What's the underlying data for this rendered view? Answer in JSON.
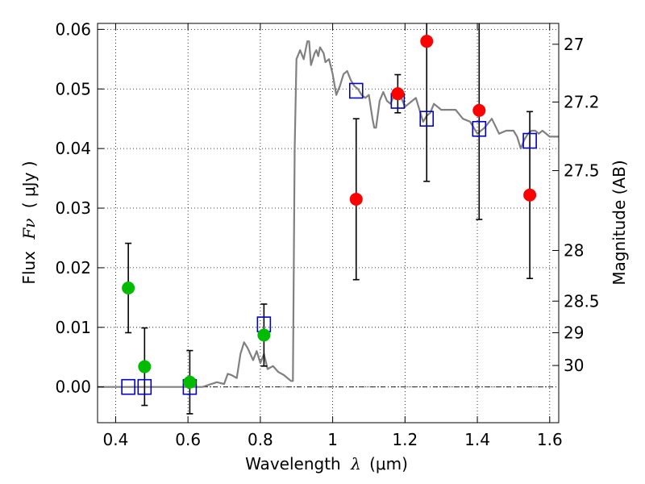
{
  "chart_data": {
    "type": "scatter",
    "xlabel": "Wavelength",
    "xlabel_symbol": "λ",
    "xlabel_unit": "(μm)",
    "ylabel": "Flux",
    "ylabel_symbol": "Fν",
    "ylabel_unit": "( μJy )",
    "ylabel_right": "Magnitude (AB)",
    "xlim": [
      0.35,
      1.625
    ],
    "ylim": [
      -0.006,
      0.061
    ],
    "grid": true,
    "x_ticks": [
      {
        "value": 0.4,
        "label": "0.4"
      },
      {
        "value": 0.6,
        "label": "0.6"
      },
      {
        "value": 0.8,
        "label": "0.8"
      },
      {
        "value": 1.0,
        "label": "1"
      },
      {
        "value": 1.2,
        "label": "1.2"
      },
      {
        "value": 1.4,
        "label": "1.4"
      },
      {
        "value": 1.6,
        "label": "1.6"
      }
    ],
    "y_ticks": [
      {
        "value": 0.0,
        "label": "0.00"
      },
      {
        "value": 0.01,
        "label": "0.01"
      },
      {
        "value": 0.02,
        "label": "0.02"
      },
      {
        "value": 0.03,
        "label": "0.03"
      },
      {
        "value": 0.04,
        "label": "0.04"
      },
      {
        "value": 0.05,
        "label": "0.05"
      },
      {
        "value": 0.06,
        "label": "0.06"
      }
    ],
    "right_ticks": [
      {
        "label": "27",
        "flux": 0.0575
      },
      {
        "label": "27.2",
        "flux": 0.0478
      },
      {
        "label": "27.5",
        "flux": 0.0363
      },
      {
        "label": "28",
        "flux": 0.0229
      },
      {
        "label": "28.5",
        "flux": 0.0144
      },
      {
        "label": "29",
        "flux": 0.0091
      },
      {
        "label": "30",
        "flux": 0.0036
      }
    ],
    "series": [
      {
        "name": "model spectrum",
        "kind": "line",
        "color": "#808080",
        "x": [
          0.35,
          0.64,
          0.66,
          0.68,
          0.7,
          0.71,
          0.72,
          0.735,
          0.745,
          0.755,
          0.765,
          0.78,
          0.79,
          0.8,
          0.81,
          0.82,
          0.835,
          0.85,
          0.865,
          0.875,
          0.885,
          0.89,
          0.895,
          0.9,
          0.91,
          0.92,
          0.93,
          0.935,
          0.94,
          0.95,
          0.955,
          0.96,
          0.965,
          0.975,
          0.98,
          0.99,
          1.0,
          1.01,
          1.02,
          1.03,
          1.04,
          1.05,
          1.06,
          1.07,
          1.08,
          1.09,
          1.1,
          1.11,
          1.115,
          1.12,
          1.13,
          1.14,
          1.15,
          1.16,
          1.17,
          1.18,
          1.19,
          1.2,
          1.21,
          1.22,
          1.23,
          1.24,
          1.25,
          1.26,
          1.27,
          1.28,
          1.29,
          1.3,
          1.32,
          1.34,
          1.36,
          1.38,
          1.4,
          1.42,
          1.44,
          1.46,
          1.48,
          1.5,
          1.51,
          1.52,
          1.53,
          1.54,
          1.55,
          1.56,
          1.57,
          1.58,
          1.6,
          1.625
        ],
        "y": [
          0.0,
          0.0,
          0.0004,
          0.0008,
          0.0005,
          0.0022,
          0.002,
          0.0015,
          0.0055,
          0.0075,
          0.0065,
          0.0045,
          0.006,
          0.004,
          0.0055,
          0.003,
          0.0035,
          0.0025,
          0.002,
          0.0015,
          0.001,
          0.001,
          0.04,
          0.055,
          0.0565,
          0.055,
          0.058,
          0.058,
          0.054,
          0.056,
          0.0565,
          0.0555,
          0.057,
          0.056,
          0.0545,
          0.055,
          0.0525,
          0.049,
          0.0505,
          0.0525,
          0.053,
          0.0515,
          0.0505,
          0.05,
          0.049,
          0.0485,
          0.049,
          0.045,
          0.0435,
          0.0435,
          0.048,
          0.0495,
          0.048,
          0.0475,
          0.049,
          0.0495,
          0.0485,
          0.047,
          0.0475,
          0.048,
          0.0485,
          0.0465,
          0.0445,
          0.0455,
          0.046,
          0.0475,
          0.047,
          0.0465,
          0.0465,
          0.0465,
          0.045,
          0.0445,
          0.0425,
          0.0435,
          0.045,
          0.0425,
          0.043,
          0.043,
          0.042,
          0.04,
          0.0415,
          0.0425,
          0.043,
          0.043,
          0.0425,
          0.043,
          0.042,
          0.042
        ]
      },
      {
        "name": "model photometry",
        "kind": "open-square",
        "color": "#0000cc",
        "x": [
          0.435,
          0.48,
          0.605,
          0.81,
          1.065,
          1.18,
          1.26,
          1.405,
          1.545
        ],
        "y": [
          0.0,
          0.0,
          0.0,
          0.0105,
          0.0497,
          0.048,
          0.045,
          0.0433,
          0.0413
        ]
      },
      {
        "name": "observed photometry (green)",
        "kind": "filled-circle",
        "color": "#00bb00",
        "x": [
          0.435,
          0.48,
          0.605,
          0.81
        ],
        "y": [
          0.0166,
          0.0034,
          0.0008,
          0.0087
        ],
        "yerr": [
          0.0075,
          0.0065,
          0.0053,
          0.0052
        ]
      },
      {
        "name": "observed photometry (red)",
        "kind": "filled-circle",
        "color": "#ff0000",
        "x": [
          1.065,
          1.18,
          1.26,
          1.405,
          1.545
        ],
        "y": [
          0.0315,
          0.0492,
          0.058,
          0.0464,
          0.0322
        ],
        "yerr": [
          0.0135,
          0.0032,
          0.0235,
          0.0183,
          0.014
        ]
      }
    ]
  }
}
